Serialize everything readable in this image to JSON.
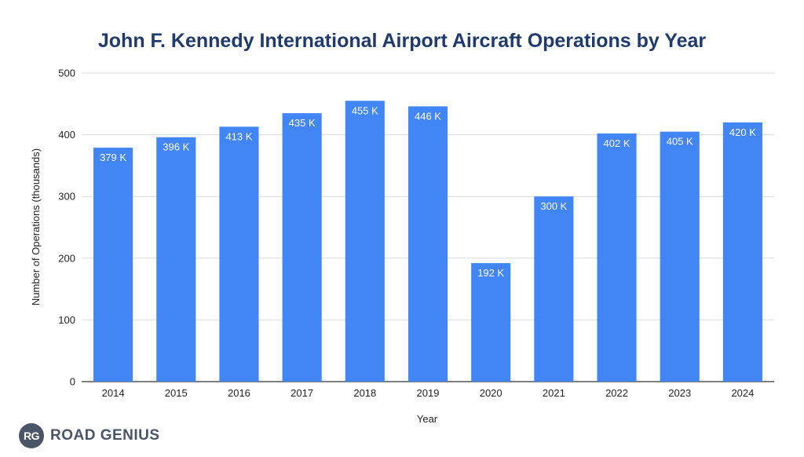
{
  "colors": {
    "bar": "#4285f4",
    "title": "#1f3a6e",
    "grid": "#d9d9d9",
    "axis": "#333333",
    "logo": "#4a5568"
  },
  "chart_data": {
    "type": "bar",
    "title": "John F. Kennedy International Airport Aircraft Operations by Year",
    "xlabel": "Year",
    "ylabel": "Number of Operations (thousands)",
    "ylim": [
      0,
      500
    ],
    "yticks": [
      0,
      100,
      200,
      300,
      400,
      500
    ],
    "grid": true,
    "categories": [
      "2014",
      "2015",
      "2016",
      "2017",
      "2018",
      "2019",
      "2020",
      "2021",
      "2022",
      "2023",
      "2024"
    ],
    "values": [
      379,
      396,
      413,
      435,
      455,
      446,
      192,
      300,
      402,
      405,
      420
    ],
    "data_labels": [
      "379 K",
      "396 K",
      "413 K",
      "435 K",
      "455 K",
      "446 K",
      "192 K",
      "300 K",
      "402 K",
      "405 K",
      "420 K"
    ]
  },
  "logo": {
    "badge": "RG",
    "text": "ROAD GENIUS",
    "icon": "road-genius-logo-icon"
  }
}
